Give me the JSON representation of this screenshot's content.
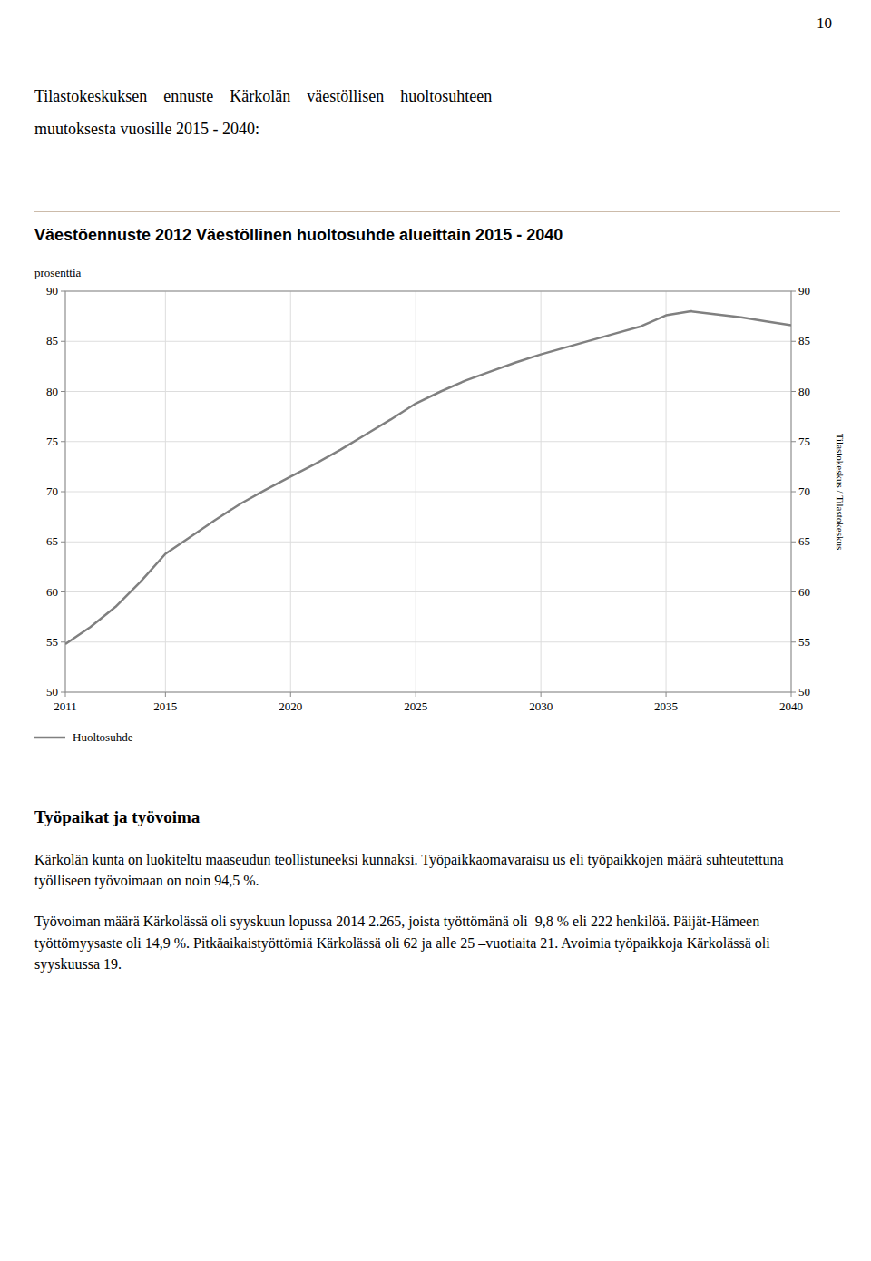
{
  "page_number": "10",
  "header": [
    "Tilastokeskuksen    ennuste    Kärkolän    väestöllisen    huoltosuhteen",
    "muutoksesta vuosille 2015 - 2040:"
  ],
  "chart_data": {
    "type": "line",
    "title": "Väestöennuste 2012 Väestöllinen huoltosuhde alueittain 2015 - 2040",
    "y_label": "prosenttia",
    "y2_label": "Tilastokeskus / Tilastokeskus",
    "x": [
      2011,
      2012,
      2013,
      2014,
      2015,
      2016,
      2017,
      2018,
      2019,
      2020,
      2021,
      2022,
      2023,
      2024,
      2025,
      2026,
      2027,
      2028,
      2029,
      2030,
      2031,
      2032,
      2033,
      2034,
      2035,
      2036,
      2037,
      2038,
      2039,
      2040
    ],
    "series": [
      {
        "name": "Huoltosuhde",
        "color": "#808080",
        "values": [
          54.8,
          56.5,
          58.5,
          61.0,
          63.8,
          65.5,
          67.2,
          68.8,
          70.2,
          71.5,
          72.8,
          74.2,
          75.7,
          77.2,
          78.8,
          80.0,
          81.1,
          82.0,
          82.9,
          83.7,
          84.4,
          85.1,
          85.8,
          86.5,
          87.6,
          88.0,
          87.7,
          87.4,
          87.0,
          86.6
        ]
      }
    ],
    "xlim": [
      2011,
      2040
    ],
    "xticks": [
      2011,
      2015,
      2020,
      2025,
      2030,
      2035,
      2040
    ],
    "ylim": [
      50,
      90
    ],
    "yticks": [
      50,
      55,
      60,
      65,
      70,
      75,
      80,
      85,
      90
    ],
    "y2lim": [
      50,
      90
    ],
    "y2ticks": [
      50,
      55,
      60,
      65,
      70,
      75,
      80,
      85,
      90
    ],
    "grid": true,
    "legend": "bottom"
  },
  "section_title": "Työpaikat ja työvoima",
  "paragraphs": [
    "Kärkolän kunta on luokiteltu maaseudun teollistuneeksi kunnaksi. Työpaikkaomavaraisu us eli työpaikkojen määrä suhteutettuna työlliseen työvoimaan on noin 94,5 %.",
    "Työvoiman määrä Kärkolässä oli syyskuun lopussa 2014 2.265, joista työttömänä oli  9,8 % eli 222 henkilöä. Päijät-Hämeen työttömyysaste oli 14,9 %. Pitkäaikaistyöttömiä Kärkolässä oli 62 ja alle 25 –vuotiaita 21. Avoimia työpaikkoja Kärkolässä oli syyskuussa 19."
  ]
}
